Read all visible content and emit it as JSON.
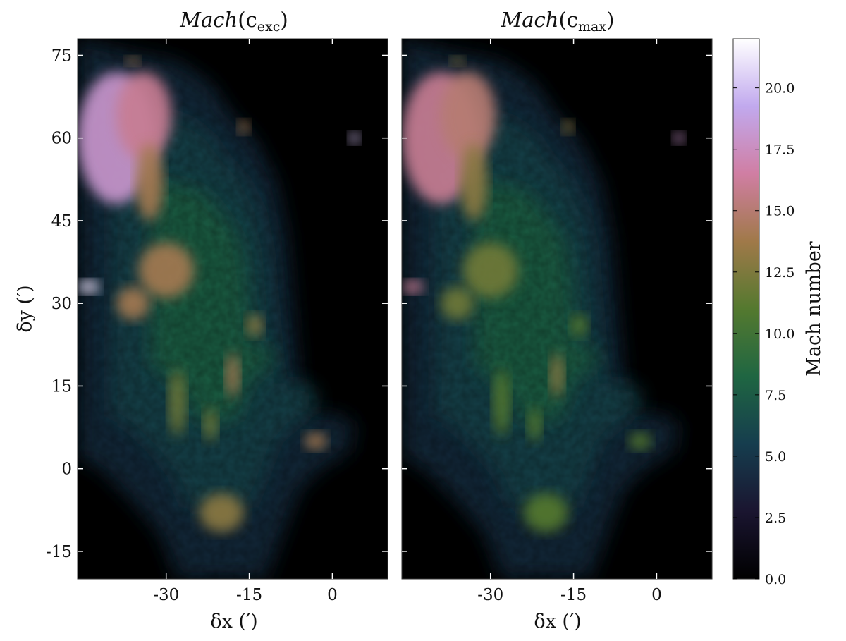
{
  "chart_data": [
    {
      "type": "heatmap",
      "title": {
        "base": "Mach",
        "paren_open": "(c",
        "subscript": "exc",
        "paren_close": ")"
      },
      "xlabel": {
        "base": "δx (",
        "prime": "′",
        "close": ")"
      },
      "ylabel": {
        "base": "δy (",
        "prime": "′",
        "close": ")"
      },
      "xlim": [
        -46,
        10
      ],
      "ylim": [
        -20,
        78
      ],
      "xticks": [
        -30,
        -15,
        0
      ],
      "xtick_labels": [
        "-30",
        "-15",
        "0"
      ],
      "yticks": [
        75,
        60,
        45,
        30,
        15,
        0,
        -15
      ],
      "ytick_labels": [
        "75",
        "60",
        "45",
        "30",
        "15",
        "0",
        "-15"
      ],
      "colormap": "cubehelix",
      "background_color": "#000000",
      "regions": [
        {
          "x": -39,
          "y": 60,
          "rx": 7,
          "ry": 12,
          "value": 18
        },
        {
          "x": -34,
          "y": 64,
          "rx": 5,
          "ry": 8,
          "value": 16
        },
        {
          "x": -33,
          "y": 52,
          "rx": 2.5,
          "ry": 7,
          "value": 14
        },
        {
          "x": -30,
          "y": 36,
          "rx": 5,
          "ry": 5,
          "value": 14
        },
        {
          "x": -36,
          "y": 30,
          "rx": 3,
          "ry": 3,
          "value": 14
        },
        {
          "x": -44,
          "y": 33,
          "rx": 2,
          "ry": 1.2,
          "value": 21
        },
        {
          "x": -28,
          "y": 12,
          "rx": 1.5,
          "ry": 6,
          "value": 12
        },
        {
          "x": -18,
          "y": 17,
          "rx": 1.2,
          "ry": 4,
          "value": 14
        },
        {
          "x": -14,
          "y": 26,
          "rx": 1.5,
          "ry": 2,
          "value": 13
        },
        {
          "x": -22,
          "y": 8,
          "rx": 1.2,
          "ry": 3,
          "value": 12
        },
        {
          "x": -20,
          "y": -8,
          "rx": 4,
          "ry": 3.5,
          "value": 13
        },
        {
          "x": -3,
          "y": 5,
          "rx": 2,
          "ry": 1.5,
          "value": 14
        },
        {
          "x": 4,
          "y": 60,
          "rx": 1,
          "ry": 1,
          "value": 20
        },
        {
          "x": -16,
          "y": 62,
          "rx": 1,
          "ry": 1.2,
          "value": 14
        },
        {
          "x": -36,
          "y": 74,
          "rx": 1.2,
          "ry": 0.8,
          "value": 14
        }
      ]
    },
    {
      "type": "heatmap",
      "title": {
        "base": "Mach",
        "paren_open": "(c",
        "subscript": "max",
        "paren_close": ")"
      },
      "xlabel": {
        "base": "δx (",
        "prime": "′",
        "close": ")"
      },
      "xlim": [
        -46,
        10
      ],
      "ylim": [
        -20,
        78
      ],
      "xticks": [
        -30,
        -15,
        0
      ],
      "xtick_labels": [
        "-30",
        "-15",
        "0"
      ],
      "yticks": [
        75,
        60,
        45,
        30,
        15,
        0,
        -15
      ],
      "colormap": "cubehelix",
      "background_color": "#000000",
      "regions": [
        {
          "x": -39,
          "y": 60,
          "rx": 7,
          "ry": 12,
          "value": 16
        },
        {
          "x": -34,
          "y": 64,
          "rx": 5,
          "ry": 8,
          "value": 15
        },
        {
          "x": -33,
          "y": 52,
          "rx": 2.5,
          "ry": 7,
          "value": 13
        },
        {
          "x": -30,
          "y": 36,
          "rx": 5,
          "ry": 5,
          "value": 12
        },
        {
          "x": -36,
          "y": 30,
          "rx": 3,
          "ry": 3,
          "value": 12
        },
        {
          "x": -44,
          "y": 33,
          "rx": 2,
          "ry": 1.2,
          "value": 16
        },
        {
          "x": -28,
          "y": 12,
          "rx": 1.5,
          "ry": 6,
          "value": 11
        },
        {
          "x": -18,
          "y": 17,
          "rx": 1.2,
          "ry": 4,
          "value": 13
        },
        {
          "x": -14,
          "y": 26,
          "rx": 1.5,
          "ry": 2,
          "value": 11
        },
        {
          "x": -22,
          "y": 8,
          "rx": 1.2,
          "ry": 3,
          "value": 11
        },
        {
          "x": -20,
          "y": -8,
          "rx": 4,
          "ry": 3.5,
          "value": 11
        },
        {
          "x": -3,
          "y": 5,
          "rx": 2,
          "ry": 1.5,
          "value": 11
        },
        {
          "x": 4,
          "y": 60,
          "rx": 1,
          "ry": 1,
          "value": 18
        },
        {
          "x": -16,
          "y": 62,
          "rx": 1,
          "ry": 1.2,
          "value": 13
        },
        {
          "x": -36,
          "y": 74,
          "rx": 1.2,
          "ry": 0.8,
          "value": 13
        }
      ]
    }
  ],
  "colorbar": {
    "label": "Mach number",
    "vmin": 0.0,
    "vmax": 22.0,
    "ticks": [
      0.0,
      2.5,
      5.0,
      7.5,
      10.0,
      12.5,
      15.0,
      17.5,
      20.0
    ],
    "tick_labels": [
      "0.0",
      "2.5",
      "5.0",
      "7.5",
      "10.0",
      "12.5",
      "15.0",
      "17.5",
      "20.0"
    ],
    "stops": [
      "#000000",
      "#1a1530",
      "#163d4e",
      "#1f6642",
      "#54792f",
      "#a07949",
      "#d07ea3",
      "#c1a9ee",
      "#ffffff"
    ]
  }
}
